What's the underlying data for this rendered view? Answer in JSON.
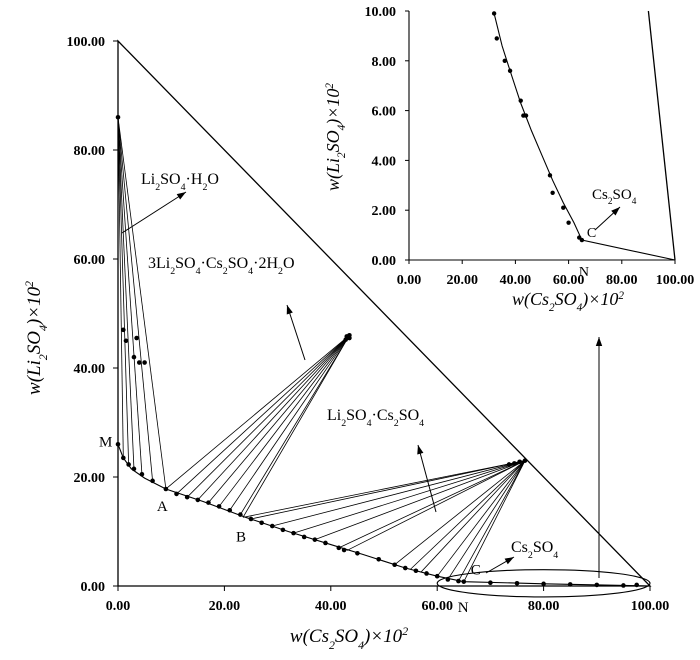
{
  "chart_data": [
    {
      "type": "scatter",
      "title": "",
      "xlabel": "w(Cs₂SO₄)×10²",
      "ylabel": "w(Li₂SO₄)×10²",
      "xlim": [
        0,
        100
      ],
      "ylim": [
        0,
        100
      ],
      "x_ticks": [
        "0.00",
        "20.00",
        "40.00",
        "60.00",
        "80.00",
        "100.00"
      ],
      "y_ticks": [
        "0.00",
        "20.00",
        "40.00",
        "60.00",
        "80.00",
        "100.00"
      ],
      "grid": false,
      "triangle": [
        [
          0,
          100
        ],
        [
          100,
          0
        ],
        [
          0,
          0
        ]
      ],
      "solubility_curve": [
        [
          0,
          26.0
        ],
        [
          1.0,
          23.5
        ],
        [
          2.5,
          21.5
        ],
        [
          5.0,
          19.8
        ],
        [
          9.0,
          17.8
        ],
        [
          16.0,
          15.5
        ],
        [
          24.0,
          12.6
        ],
        [
          32.0,
          10.0
        ],
        [
          40.0,
          7.6
        ],
        [
          46.0,
          5.8
        ],
        [
          54.0,
          3.3
        ],
        [
          60.0,
          1.8
        ],
        [
          65.0,
          0.8
        ],
        [
          80.0,
          0.4
        ],
        [
          100.0,
          0.0
        ]
      ],
      "series": [
        {
          "points": [
            [
              0,
              26.0
            ],
            [
              1.0,
              23.5
            ],
            [
              2.0,
              22.3
            ],
            [
              3.0,
              21.5
            ],
            [
              4.5,
              20.5
            ],
            [
              6.5,
              19.3
            ],
            [
              9.0,
              17.8
            ],
            [
              11.0,
              16.9
            ],
            [
              13.0,
              16.3
            ],
            [
              15.0,
              15.8
            ],
            [
              17.0,
              15.3
            ],
            [
              19.0,
              14.6
            ],
            [
              21.0,
              13.9
            ],
            [
              23.0,
              13.1
            ],
            [
              25.0,
              12.3
            ],
            [
              27.0,
              11.6
            ],
            [
              29.0,
              11.0
            ],
            [
              31.0,
              10.3
            ],
            [
              33.0,
              9.7
            ],
            [
              35.0,
              9.0
            ],
            [
              37.0,
              8.5
            ],
            [
              39.0,
              7.9
            ],
            [
              41.5,
              7.0
            ],
            [
              42.5,
              6.6
            ],
            [
              45.0,
              6.0
            ],
            [
              49.0,
              4.9
            ],
            [
              52.0,
              3.9
            ],
            [
              54.0,
              3.3
            ],
            [
              56.0,
              2.8
            ],
            [
              58.0,
              2.3
            ],
            [
              60.0,
              1.8
            ],
            [
              62.0,
              1.2
            ],
            [
              64.0,
              0.9
            ],
            [
              65.0,
              0.8
            ],
            [
              70.0,
              0.6
            ],
            [
              75.0,
              0.5
            ],
            [
              80.0,
              0.4
            ],
            [
              85.0,
              0.3
            ],
            [
              90.0,
              0.2
            ],
            [
              95.0,
              0.1
            ]
          ]
        },
        {
          "points": [
            [
              0,
              86.0
            ],
            [
              1.0,
              47.0
            ],
            [
              1.5,
              45.0
            ],
            [
              3.0,
              42.0
            ],
            [
              3.5,
              45.5
            ],
            [
              4.0,
              41.0
            ],
            [
              5.0,
              41.0
            ]
          ]
        },
        {
          "points": [
            [
              43.5,
              46.0
            ],
            [
              43.0,
              45.8
            ],
            [
              43.5,
              45.5
            ],
            [
              42.8,
              45.2
            ]
          ]
        },
        {
          "points": [
            [
              76.5,
              23.0
            ],
            [
              75.5,
              22.8
            ],
            [
              74.5,
              22.5
            ],
            [
              73.5,
              22.3
            ]
          ]
        },
        {
          "points": [
            [
              97.5,
              0.2
            ]
          ]
        }
      ],
      "tie_lines": [
        {
          "solid": [
            0,
            86.0
          ],
          "liquid": [
            [
              0,
              26.0
            ],
            [
              1.0,
              23.5
            ],
            [
              2.0,
              22.3
            ],
            [
              3.0,
              21.5
            ],
            [
              4.5,
              20.5
            ],
            [
              6.5,
              19.3
            ],
            [
              9.0,
              17.8
            ]
          ]
        },
        {
          "solid": [
            43.5,
            46.0
          ],
          "liquid": [
            [
              9.0,
              17.8
            ],
            [
              11.0,
              16.9
            ],
            [
              13.0,
              16.3
            ],
            [
              15.0,
              15.8
            ],
            [
              17.0,
              15.3
            ],
            [
              19.0,
              14.6
            ],
            [
              21.0,
              13.9
            ],
            [
              23.0,
              13.1
            ],
            [
              23.5,
              12.6
            ]
          ]
        },
        {
          "solid": [
            76.5,
            23.0
          ],
          "liquid": [
            [
              23.5,
              12.6
            ],
            [
              25.0,
              12.3
            ],
            [
              29.0,
              11.0
            ],
            [
              33.0,
              9.7
            ],
            [
              37.0,
              8.5
            ],
            [
              41.5,
              7.0
            ],
            [
              43.0,
              6.5
            ],
            [
              52.0,
              3.9
            ],
            [
              55.0,
              3.1
            ],
            [
              57.0,
              2.6
            ],
            [
              60.0,
              1.8
            ],
            [
              62.0,
              1.2
            ],
            [
              64.0,
              0.9
            ],
            [
              65.0,
              0.8
            ]
          ]
        }
      ],
      "point_labels": [
        {
          "text": "M",
          "x": 0,
          "y": 26.0
        },
        {
          "text": "A",
          "x": 9.0,
          "y": 17.8
        },
        {
          "text": "B",
          "x": 23.5,
          "y": 12.6
        },
        {
          "text": "C",
          "x": 65.0,
          "y": 0.8
        },
        {
          "text": "N",
          "x": 65.0,
          "y": 0
        }
      ],
      "annotations": [
        {
          "text": "Li₂SO₄·H₂O",
          "points_to": [
            1.5,
            68.0
          ]
        },
        {
          "text": "3Li₂SO₄·Cs₂SO₄·2H₂O",
          "points_to": [
            35.0,
            42.0
          ]
        },
        {
          "text": "Li₂SO₄·Cs₂SO₄",
          "points_to": [
            60.0,
            15.0
          ]
        },
        {
          "text": "Cs₂SO₄",
          "points_to": [
            69.0,
            1.0
          ]
        }
      ],
      "zoom_ellipse": {
        "center": [
          80,
          0.5
        ],
        "rx": 20,
        "ry": 2.5
      }
    },
    {
      "type": "scatter",
      "title": "",
      "xlabel": "w(Cs₂SO₄)×10²",
      "ylabel": "w(Li₂SO₄)×10²",
      "xlim": [
        0,
        100
      ],
      "ylim": [
        0,
        10
      ],
      "x_ticks": [
        "0.00",
        "20.00",
        "40.00",
        "60.00",
        "80.00",
        "100.00"
      ],
      "y_ticks": [
        "0.00",
        "2.00",
        "4.00",
        "6.00",
        "8.00",
        "10.00"
      ],
      "grid": false,
      "curve": [
        [
          32.0,
          9.9
        ],
        [
          35.0,
          8.6
        ],
        [
          38.0,
          7.6
        ],
        [
          42.0,
          6.3
        ],
        [
          46.0,
          5.2
        ],
        [
          50.0,
          4.2
        ],
        [
          54.0,
          3.2
        ],
        [
          58.0,
          2.3
        ],
        [
          62.0,
          1.5
        ],
        [
          65.0,
          0.8
        ],
        [
          100.0,
          0.0
        ]
      ],
      "hypotenuse": [
        [
          90.0,
          10.0
        ],
        [
          100.0,
          0.0
        ]
      ],
      "series": [
        {
          "points": [
            [
              32.0,
              9.9
            ],
            [
              33.0,
              8.9
            ],
            [
              36.0,
              8.0
            ],
            [
              38.0,
              7.6
            ],
            [
              42.0,
              6.4
            ],
            [
              43.0,
              5.8
            ],
            [
              44.0,
              5.8
            ],
            [
              53.0,
              3.4
            ],
            [
              54.0,
              2.7
            ],
            [
              58.0,
              2.1
            ],
            [
              60.0,
              1.5
            ],
            [
              64.0,
              0.9
            ],
            [
              65.0,
              0.8
            ]
          ]
        }
      ],
      "point_labels": [
        {
          "text": "C",
          "x": 65.0,
          "y": 0.8
        },
        {
          "text": "N",
          "x": 65.0,
          "y": 0
        }
      ],
      "annotations": [
        {
          "text": "Cs₂SO₄",
          "points_to": [
            68.0,
            1.2
          ]
        }
      ]
    }
  ]
}
